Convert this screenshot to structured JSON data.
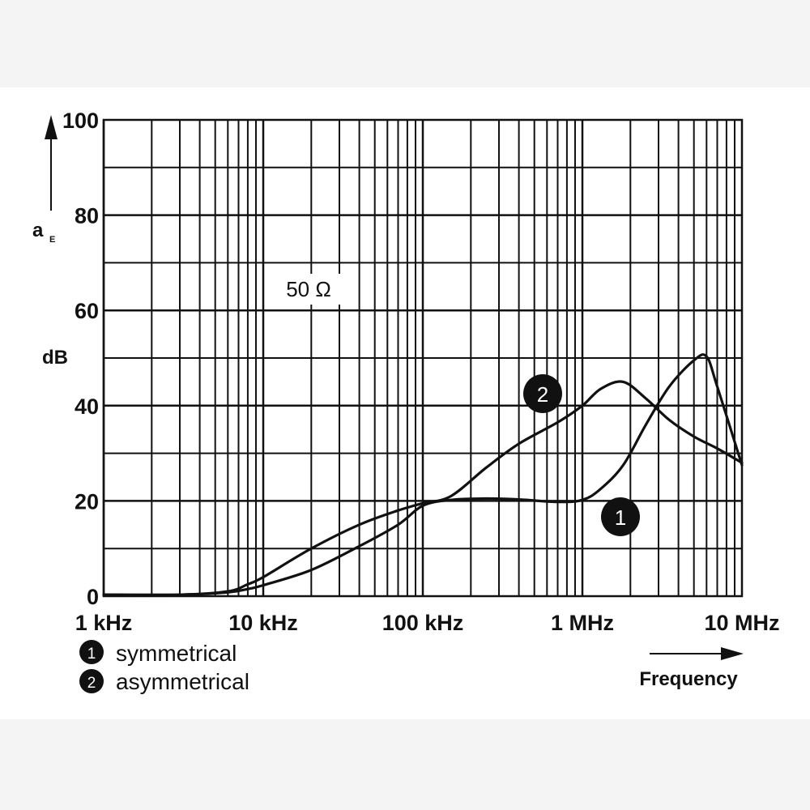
{
  "chart_data": {
    "type": "line",
    "title": "",
    "xlabel": "Frequency",
    "ylabel_symbol": "a",
    "ylabel_subscript": "E",
    "ylabel_unit": "dB",
    "x_scale": "log",
    "xlim_hz": [
      1000,
      10000000
    ],
    "ylim": [
      0,
      100
    ],
    "grid": true,
    "x_ticks": [
      {
        "value": 1000,
        "label": "1 kHz"
      },
      {
        "value": 10000,
        "label": "10 kHz"
      },
      {
        "value": 100000,
        "label": "100 kHz"
      },
      {
        "value": 1000000,
        "label": "1 MHz"
      },
      {
        "value": 10000000,
        "label": "10 MHz"
      }
    ],
    "y_ticks": [
      {
        "value": 0,
        "label": "0"
      },
      {
        "value": 20,
        "label": "20"
      },
      {
        "value": 40,
        "label": "40"
      },
      {
        "value": 60,
        "label": "60"
      },
      {
        "value": 80,
        "label": "80"
      },
      {
        "value": 100,
        "label": "100"
      }
    ],
    "annotation": "50 Ω",
    "series": [
      {
        "id": "1",
        "name": "symmetrical",
        "x_hz": [
          1000,
          3000,
          6000,
          8000,
          10000,
          20000,
          40000,
          70000,
          100000,
          150000,
          250000,
          400000,
          700000,
          1000000,
          1300000,
          1800000,
          2500000,
          3500000,
          5000000,
          6000000,
          7000000,
          10000000
        ],
        "values": [
          0.3,
          0.3,
          0.8,
          1.5,
          2.3,
          5.5,
          10.5,
          15,
          19,
          20.2,
          20.5,
          20.3,
          19.8,
          20.2,
          22.5,
          27.5,
          36,
          44,
          49.5,
          50.3,
          44,
          27.5
        ]
      },
      {
        "id": "2",
        "name": "asymmetrical",
        "x_hz": [
          1000,
          3000,
          6000,
          8000,
          10000,
          20000,
          40000,
          70000,
          100000,
          150000,
          250000,
          400000,
          700000,
          1000000,
          1300000,
          1800000,
          2500000,
          3500000,
          5000000,
          7000000,
          10000000
        ],
        "values": [
          0.3,
          0.3,
          1,
          2.5,
          4,
          10,
          15,
          18,
          19.5,
          21,
          27,
          32,
          36.5,
          40,
          43.5,
          45,
          41.5,
          37,
          33.5,
          31,
          28
        ]
      }
    ],
    "legend": [
      {
        "marker": "1",
        "label": "symmetrical"
      },
      {
        "marker": "2",
        "label": "asymmetrical"
      }
    ],
    "curve_markers": [
      "2",
      "1"
    ]
  }
}
